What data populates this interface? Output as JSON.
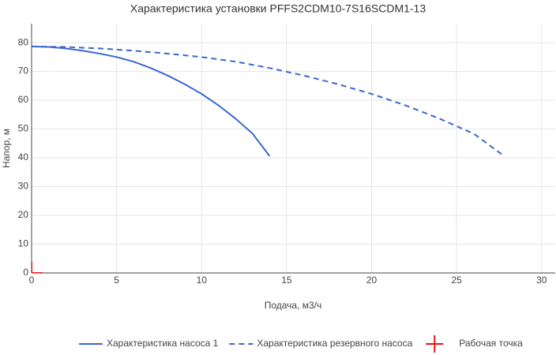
{
  "chart_data": {
    "type": "line",
    "title": "Характеристика установки PFFS2CDM10-7S16SCDM1-13",
    "x_label": "Подача, м3/ч",
    "y_label": "Напор, м",
    "xlim": [
      0,
      30.8
    ],
    "ylim": [
      0,
      86.6
    ],
    "xticks": [
      0,
      5,
      10,
      15,
      20,
      25,
      30
    ],
    "yticks": [
      0,
      10,
      20,
      30,
      40,
      50,
      60,
      70,
      80
    ],
    "grid": true,
    "legend": "bottom",
    "series": [
      {
        "name": "Характеристика насоса 1",
        "color": "#3a67d0",
        "dash": "solid",
        "x": [
          0,
          1,
          2,
          3,
          4,
          5,
          6,
          7,
          8,
          9,
          10,
          11,
          12,
          13,
          14
        ],
        "values": [
          78.7,
          78.5,
          78,
          77.2,
          76.2,
          75,
          73.4,
          71.2,
          68.6,
          65.6,
          62.2,
          58.2,
          53.6,
          48.4,
          40.6
        ]
      },
      {
        "name": "Характеристика резервного насоса",
        "color": "#3a67d0",
        "dash": "dashed",
        "x": [
          0,
          2,
          4,
          6,
          8,
          10,
          12,
          14,
          16,
          18,
          20,
          22,
          24,
          26,
          27.8
        ],
        "values": [
          78.7,
          78.5,
          78,
          77.2,
          76.2,
          75,
          73.4,
          71.2,
          68.6,
          65.6,
          62.2,
          58.2,
          53.6,
          48.4,
          40.6
        ]
      },
      {
        "name": "Рабочая точка",
        "color": "#ee1111",
        "marker": "cross",
        "x": [
          0
        ],
        "values": [
          0
        ]
      }
    ]
  }
}
